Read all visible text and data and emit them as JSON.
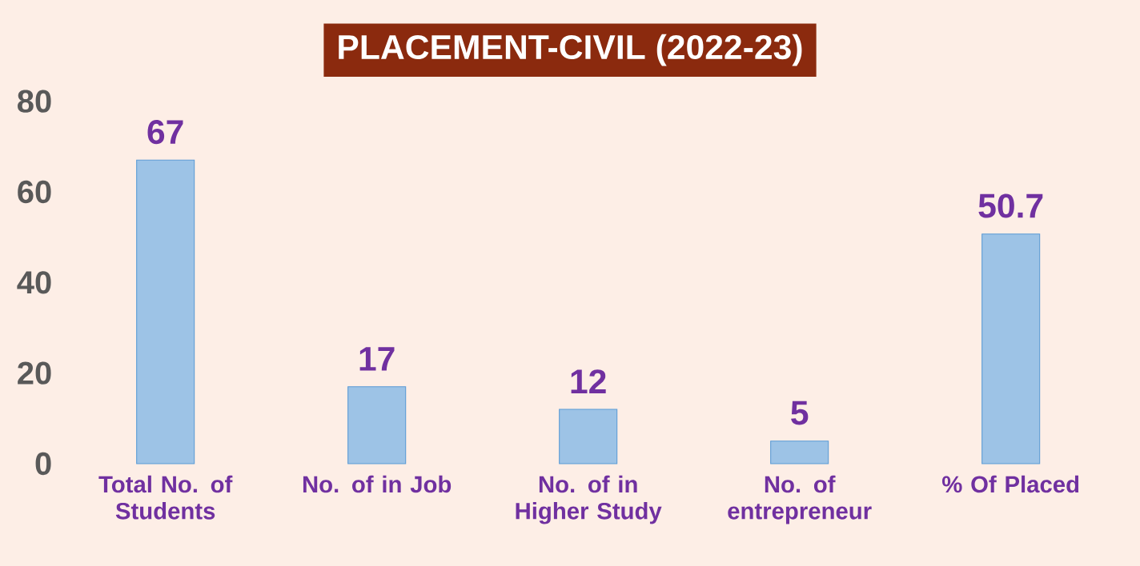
{
  "chart_data": {
    "type": "bar",
    "title": "PLACEMENT-CIVIL (2022-23)",
    "categories": [
      "Total No. of Students",
      "No. of in Job",
      "No. of in Higher Study",
      "No. of entrepreneur",
      "% Of Placed"
    ],
    "values": [
      67,
      17,
      12,
      5,
      50.7
    ],
    "color": "#9dc3e6",
    "ylim": [
      0,
      80
    ],
    "yticks": [
      0,
      20,
      40,
      60,
      80
    ],
    "data_labels": true
  }
}
